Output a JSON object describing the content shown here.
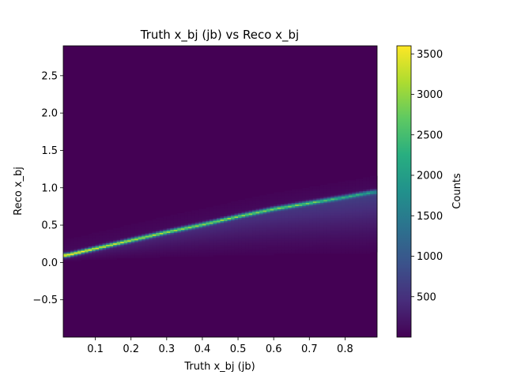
{
  "chart_data": {
    "type": "heatmap",
    "title": "Truth x_bj (jb) vs Reco x_bj",
    "xlabel": "Truth x_bj (jb)",
    "ylabel": "Reco x_bj",
    "xlim": [
      0.01,
      0.89
    ],
    "ylim": [
      -1.0,
      2.9
    ],
    "x_ticks": [
      "0.1",
      "0.2",
      "0.3",
      "0.4",
      "0.5",
      "0.6",
      "0.7",
      "0.8"
    ],
    "x_tick_values": [
      0.1,
      0.2,
      0.3,
      0.4,
      0.5,
      0.6,
      0.7,
      0.8
    ],
    "y_ticks": [
      "−0.5",
      "0.0",
      "0.5",
      "1.0",
      "1.5",
      "2.0",
      "2.5"
    ],
    "y_tick_values": [
      -0.5,
      0.0,
      0.5,
      1.0,
      1.5,
      2.0,
      2.5
    ],
    "colorbar": {
      "label": "Counts",
      "range": [
        0,
        3600
      ],
      "ticks": [
        "500",
        "1000",
        "1500",
        "2000",
        "2500",
        "3000",
        "3500"
      ],
      "tick_values": [
        500,
        1000,
        1500,
        2000,
        2500,
        3000,
        3500
      ],
      "colormap": "viridis"
    },
    "ridge": {
      "x": [
        0.02,
        0.1,
        0.2,
        0.3,
        0.4,
        0.5,
        0.6,
        0.7,
        0.8,
        0.88
      ],
      "y": [
        0.1,
        0.19,
        0.3,
        0.41,
        0.51,
        0.62,
        0.72,
        0.8,
        0.88,
        0.95
      ],
      "counts": [
        3500,
        3100,
        2900,
        2700,
        2600,
        2500,
        2400,
        2300,
        1800,
        1500
      ]
    },
    "tail_floor_y": 0.0
  }
}
